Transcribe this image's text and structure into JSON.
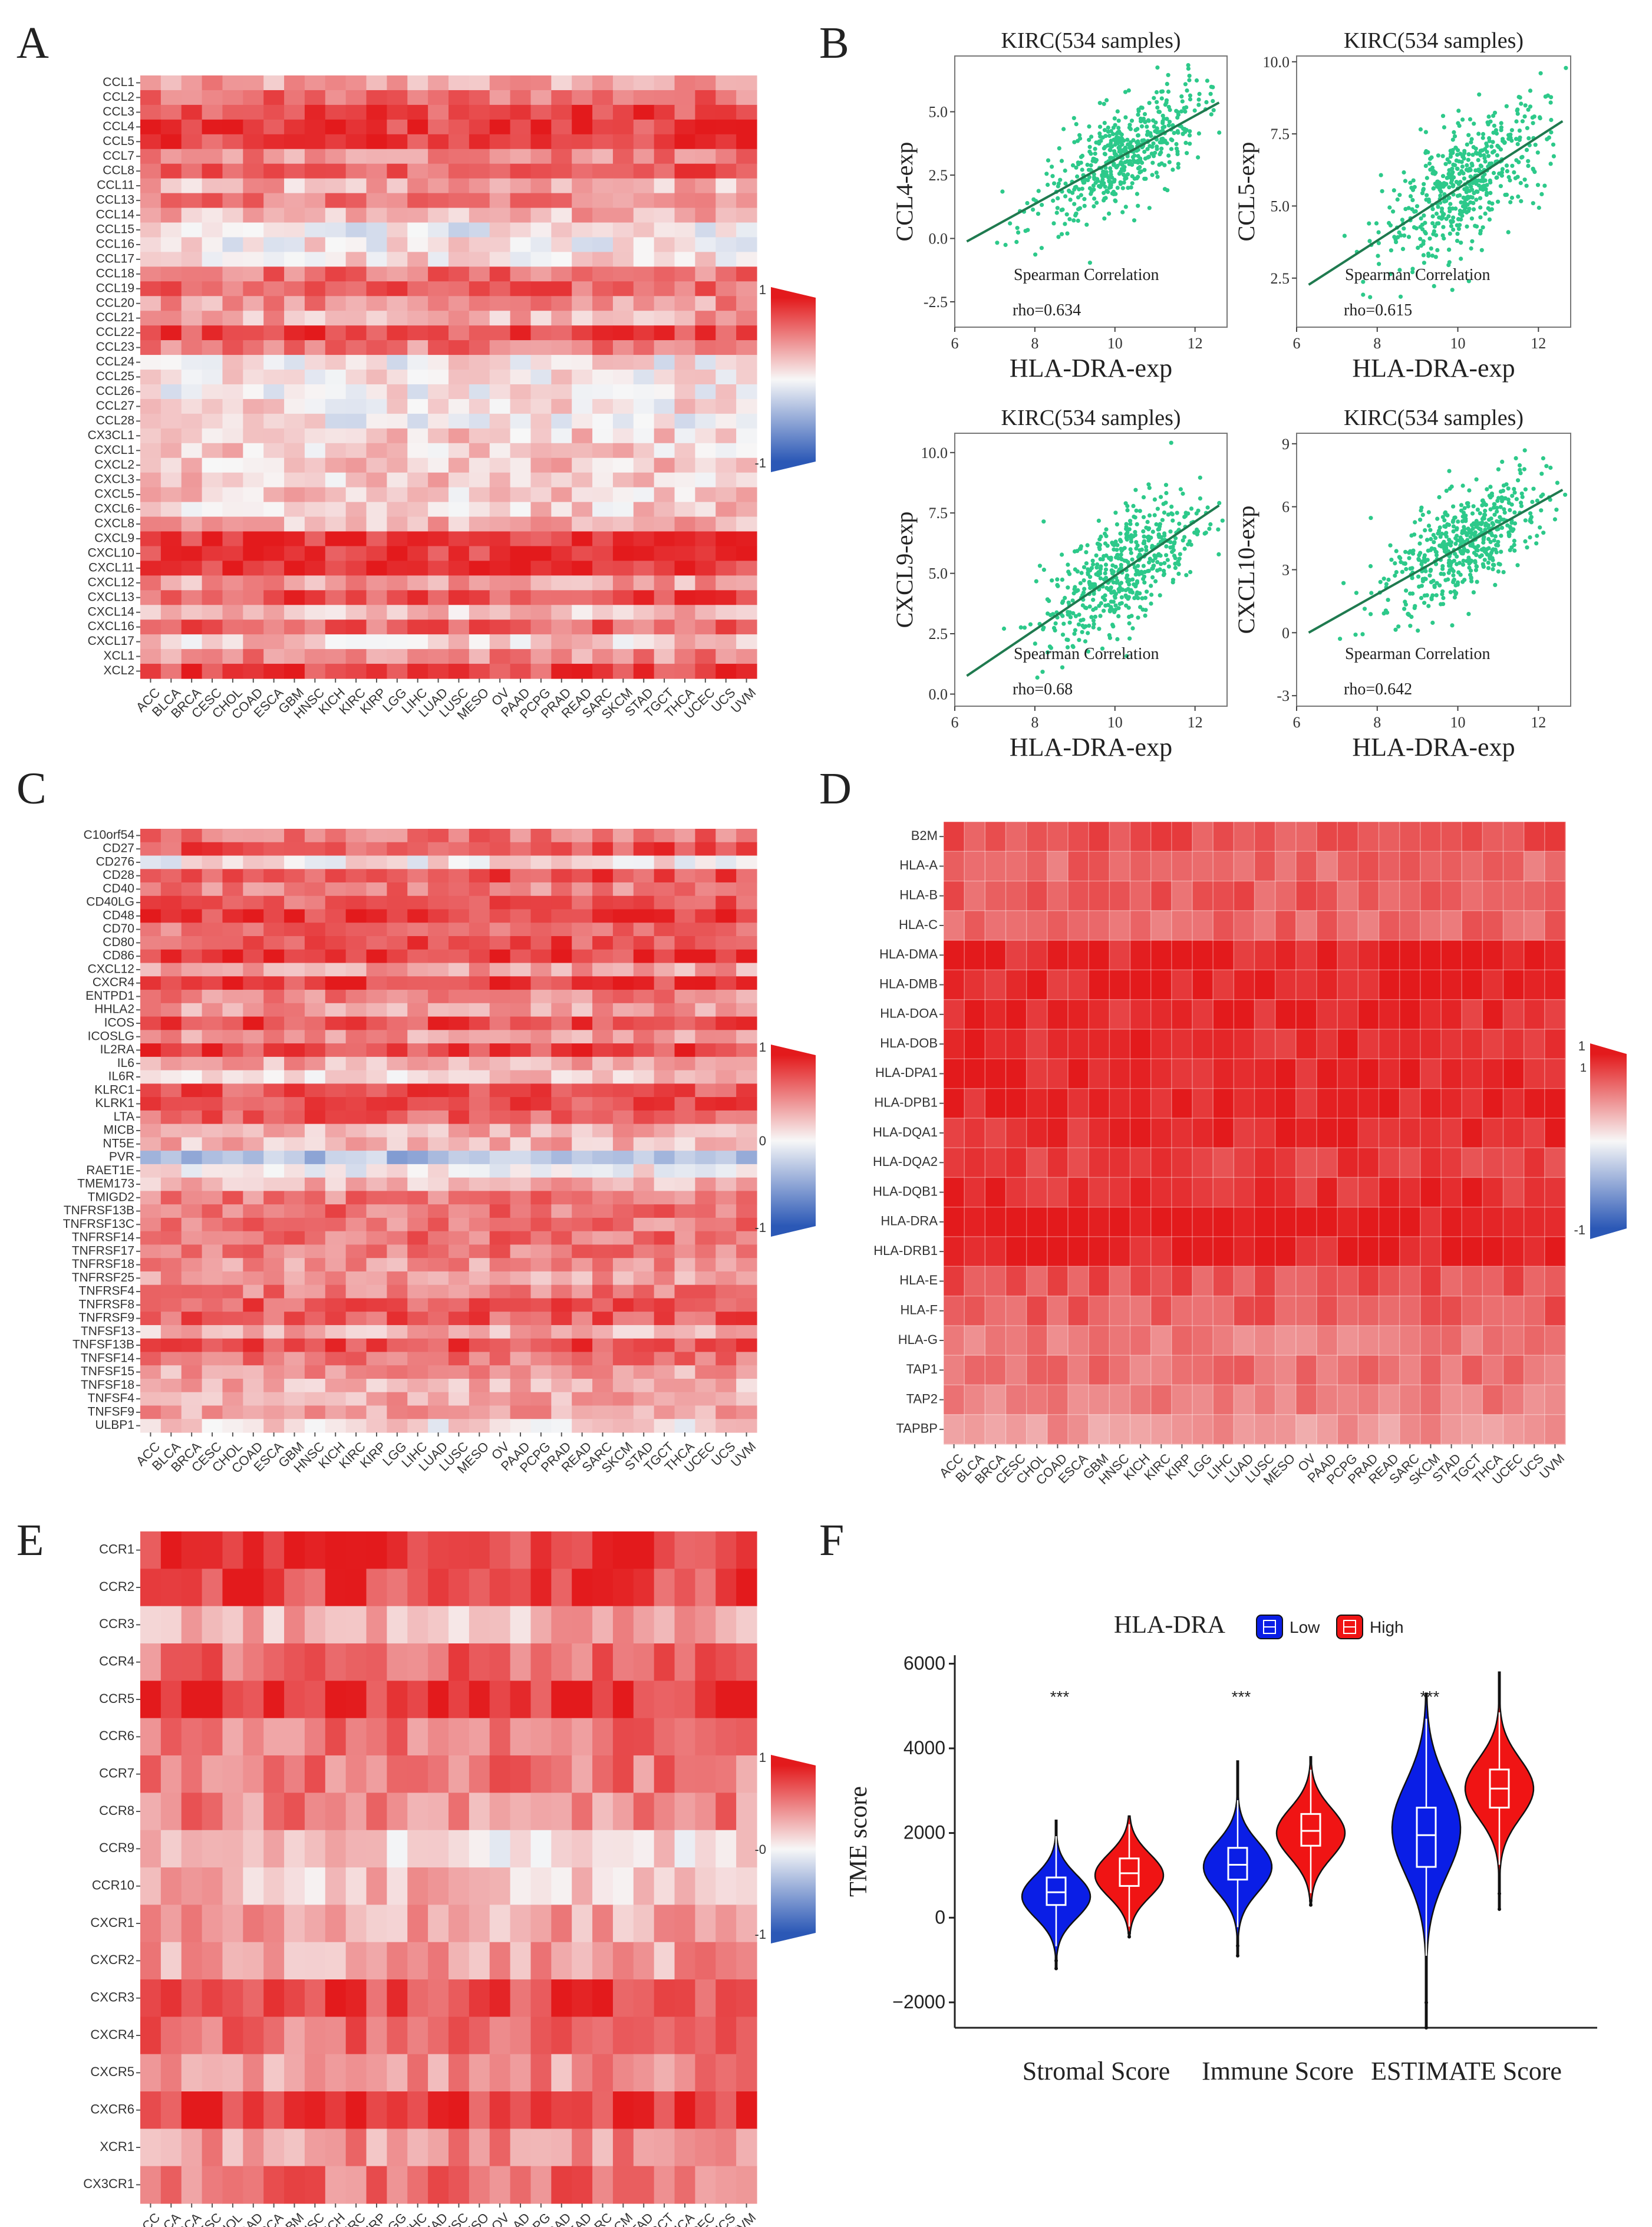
{
  "panel_labels": {
    "A": "A",
    "B": "B",
    "C": "C",
    "D": "D",
    "E": "E",
    "F": "F"
  },
  "colors": {
    "high": "#e31a1c",
    "mid": "#f7f7f7",
    "low": "#2b58b6",
    "scatter": "#2dc98a",
    "line": "#1f7a4f",
    "violin_low": "#0a1ee6",
    "violin_high": "#f01414"
  },
  "cancer_types": [
    "ACC",
    "BLCA",
    "BRCA",
    "CESC",
    "CHOL",
    "COAD",
    "ESCA",
    "GBM",
    "HNSC",
    "KICH",
    "KIRC",
    "KIRP",
    "LGG",
    "LIHC",
    "LUAD",
    "LUSC",
    "MESO",
    "OV",
    "PAAD",
    "PCPG",
    "PRAD",
    "READ",
    "SARC",
    "SKCM",
    "STAD",
    "TGCT",
    "THCA",
    "UCEC",
    "UCS",
    "UVM"
  ],
  "chart_data": [
    {
      "id": "A",
      "type": "heatmap",
      "rows": [
        "CCL1",
        "CCL2",
        "CCL3",
        "CCL4",
        "CCL5",
        "CCL7",
        "CCL8",
        "CCL11",
        "CCL13",
        "CCL14",
        "CCL15",
        "CCL16",
        "CCL17",
        "CCL18",
        "CCL19",
        "CCL20",
        "CCL21",
        "CCL22",
        "CCL23",
        "CCL24",
        "CCL25",
        "CCL26",
        "CCL27",
        "CCL28",
        "CX3CL1",
        "CXCL1",
        "CXCL2",
        "CXCL3",
        "CXCL5",
        "CXCL6",
        "CXCL8",
        "CXCL9",
        "CXCL10",
        "CXCL11",
        "CXCL12",
        "CXCL13",
        "CXCL14",
        "CXCL16",
        "CXCL17",
        "XCL1",
        "XCL2"
      ],
      "row_means": [
        0.35,
        0.6,
        0.8,
        0.85,
        0.85,
        0.5,
        0.7,
        0.3,
        0.55,
        0.3,
        0.0,
        0.05,
        0.15,
        0.6,
        0.65,
        0.45,
        0.35,
        0.8,
        0.55,
        0.05,
        0.05,
        0.05,
        0.1,
        0.05,
        0.2,
        0.2,
        0.25,
        0.2,
        0.2,
        0.2,
        0.3,
        0.9,
        0.9,
        0.9,
        0.4,
        0.75,
        0.25,
        0.65,
        0.2,
        0.5,
        0.8
      ],
      "legend_max": "1",
      "legend_min": "-1"
    },
    {
      "id": "B",
      "type": "scatter",
      "plots": [
        {
          "title": "KIRC(534 samples)",
          "xlabel": "HLA-DRA-exp",
          "ylabel": "CCL4-exp",
          "xlim": [
            6,
            12.8
          ],
          "ylim": [
            -3.5,
            7.2
          ],
          "xticks": [
            6,
            8,
            10,
            12
          ],
          "yticks": [
            -2.5,
            0.0,
            2.5,
            5.0
          ],
          "ytick_labels": [
            "-2.5",
            "0.0",
            "2.5",
            "5.0"
          ],
          "fit": {
            "slope": 0.87,
            "intercept": -5.6
          },
          "annotation": "Spearman Correlation",
          "rho": "rho=0.634",
          "n": 534,
          "center": [
            10.2,
            3.3
          ],
          "spread": [
            1.0,
            1.1
          ]
        },
        {
          "title": "KIRC(534 samples)",
          "xlabel": "HLA-DRA-exp",
          "ylabel": "CCL5-exp",
          "xlim": [
            6,
            12.8
          ],
          "ylim": [
            0.8,
            10.2
          ],
          "xticks": [
            6,
            8,
            10,
            12
          ],
          "yticks": [
            2.5,
            5.0,
            7.5,
            10.0
          ],
          "ytick_labels": [
            "2.5",
            "5.0",
            "7.5",
            "10.0"
          ],
          "fit": {
            "slope": 0.9,
            "intercept": -3.4
          },
          "annotation": "Spearman Correlation",
          "rho": "rho=0.615",
          "n": 534,
          "center": [
            10.2,
            5.8
          ],
          "spread": [
            1.0,
            1.2
          ]
        },
        {
          "title": "KIRC(534 samples)",
          "xlabel": "HLA-DRA-exp",
          "ylabel": "CXCL9-exp",
          "xlim": [
            6,
            12.8
          ],
          "ylim": [
            -0.5,
            10.8
          ],
          "xticks": [
            6,
            8,
            10,
            12
          ],
          "yticks": [
            0.0,
            2.5,
            5.0,
            7.5,
            10.0
          ],
          "ytick_labels": [
            "0.0",
            "2.5",
            "5.0",
            "7.5",
            "10.0"
          ],
          "fit": {
            "slope": 1.12,
            "intercept": -6.3
          },
          "annotation": "Spearman Correlation",
          "rho": "rho=0.68",
          "n": 534,
          "center": [
            10.2,
            5.2
          ],
          "spread": [
            1.0,
            1.4
          ]
        },
        {
          "title": "KIRC(534 samples)",
          "xlabel": "HLA-DRA-exp",
          "ylabel": "CXCL10-exp",
          "xlim": [
            6,
            12.8
          ],
          "ylim": [
            -3.5,
            9.5
          ],
          "xticks": [
            6,
            8,
            10,
            12
          ],
          "yticks": [
            -3,
            0,
            3,
            6,
            9
          ],
          "ytick_labels": [
            "-3",
            "0",
            "3",
            "6",
            "9"
          ],
          "fit": {
            "slope": 1.08,
            "intercept": -6.8
          },
          "annotation": "Spearman Correlation",
          "rho": "rho=0.642",
          "n": 534,
          "center": [
            10.2,
            4.3
          ],
          "spread": [
            1.0,
            1.4
          ]
        }
      ]
    },
    {
      "id": "C",
      "type": "heatmap",
      "rows": [
        "C10orf54",
        "CD27",
        "CD276",
        "CD28",
        "CD40",
        "CD40LG",
        "CD48",
        "CD70",
        "CD80",
        "CD86",
        "CXCL12",
        "CXCR4",
        "ENTPD1",
        "HHLA2",
        "ICOS",
        "ICOSLG",
        "IL2RA",
        "IL6",
        "IL6R",
        "KLRC1",
        "KLRK1",
        "LTA",
        "MICB",
        "NT5E",
        "PVR",
        "RAET1E",
        "TMEM173",
        "TMIGD2",
        "TNFRSF13B",
        "TNFRSF13C",
        "TNFRSF14",
        "TNFRSF17",
        "TNFRSF18",
        "TNFRSF25",
        "TNFRSF4",
        "TNFRSF8",
        "TNFRSF9",
        "TNFSF13",
        "TNFSF13B",
        "TNFSF14",
        "TNFSF15",
        "TNFSF18",
        "TNFSF4",
        "TNFSF9",
        "ULBP1"
      ],
      "row_means": [
        0.6,
        0.75,
        0.05,
        0.75,
        0.55,
        0.7,
        0.85,
        0.6,
        0.75,
        0.85,
        0.4,
        0.85,
        0.5,
        0.4,
        0.8,
        0.4,
        0.8,
        0.35,
        0.2,
        0.75,
        0.75,
        0.7,
        0.3,
        0.3,
        -0.35,
        0.05,
        0.3,
        0.55,
        0.6,
        0.55,
        0.6,
        0.55,
        0.45,
        0.4,
        0.55,
        0.7,
        0.7,
        0.3,
        0.75,
        0.55,
        0.4,
        0.3,
        0.35,
        0.4,
        0.1
      ],
      "legend_max": "1",
      "legend_mid": "0",
      "legend_min": "-1"
    },
    {
      "id": "D",
      "type": "heatmap",
      "rows": [
        "B2M",
        "HLA-A",
        "HLA-B",
        "HLA-C",
        "HLA-DMA",
        "HLA-DMB",
        "HLA-DOA",
        "HLA-DOB",
        "HLA-DPA1",
        "HLA-DPB1",
        "HLA-DQA1",
        "HLA-DQA2",
        "HLA-DQB1",
        "HLA-DRA",
        "HLA-DRB1",
        "HLA-E",
        "HLA-F",
        "HLA-G",
        "TAP1",
        "TAP2",
        "TAPBP"
      ],
      "row_means": [
        0.75,
        0.65,
        0.7,
        0.65,
        0.95,
        0.95,
        0.92,
        0.9,
        0.97,
        0.97,
        0.9,
        0.85,
        0.9,
        1.0,
        0.97,
        0.75,
        0.7,
        0.55,
        0.6,
        0.55,
        0.45
      ],
      "legend_max": "1",
      "legend_max2": "1",
      "legend_min": "-1"
    },
    {
      "id": "E",
      "type": "heatmap",
      "rows": [
        "CCR1",
        "CCR2",
        "CCR3",
        "CCR4",
        "CCR5",
        "CCR6",
        "CCR7",
        "CCR8",
        "CCR9",
        "CCR10",
        "CXCR1",
        "CXCR2",
        "CXCR3",
        "CXCR4",
        "CXCR5",
        "CXCR6",
        "XCR1",
        "CX3CR1"
      ],
      "row_means": [
        0.85,
        0.8,
        0.3,
        0.65,
        0.9,
        0.55,
        0.55,
        0.5,
        0.15,
        0.25,
        0.35,
        0.4,
        0.8,
        0.6,
        0.45,
        0.85,
        0.45,
        0.6
      ],
      "legend_max": "1",
      "legend_mid": "-0",
      "legend_min": "-1"
    },
    {
      "id": "F",
      "type": "violin",
      "legend_title": "HLA-DRA",
      "legend_items": [
        "Low",
        "High"
      ],
      "ylabel": "TME score",
      "ylim": [
        -2600,
        6200
      ],
      "yticks": [
        -2000,
        0,
        2000,
        4000,
        6000
      ],
      "ytick_labels": [
        "−2000",
        "0",
        "2000",
        "4000",
        "6000"
      ],
      "categories": [
        "Stromal Score",
        "Immune Score",
        "ESTIMATE Score"
      ],
      "significance": [
        "***",
        "***",
        "***"
      ],
      "groups": [
        {
          "category": "Stromal Score",
          "group": "Low",
          "median": 600,
          "q1": 300,
          "q3": 950,
          "min": -1200,
          "max": 2300,
          "mode": 500
        },
        {
          "category": "Stromal Score",
          "group": "High",
          "median": 1050,
          "q1": 750,
          "q3": 1400,
          "min": -450,
          "max": 2400,
          "mode": 1000
        },
        {
          "category": "Immune Score",
          "group": "Low",
          "median": 1250,
          "q1": 900,
          "q3": 1650,
          "min": -900,
          "max": 3700,
          "mode": 1200
        },
        {
          "category": "Immune Score",
          "group": "High",
          "median": 2050,
          "q1": 1700,
          "q3": 2450,
          "min": 300,
          "max": 3800,
          "mode": 2000
        },
        {
          "category": "ESTIMATE Score",
          "group": "Low",
          "median": 1950,
          "q1": 1200,
          "q3": 2600,
          "min": -2600,
          "max": 5300,
          "mode": 2100
        },
        {
          "category": "ESTIMATE Score",
          "group": "High",
          "median": 3050,
          "q1": 2600,
          "q3": 3500,
          "min": 200,
          "max": 5800,
          "mode": 3050
        }
      ]
    }
  ]
}
